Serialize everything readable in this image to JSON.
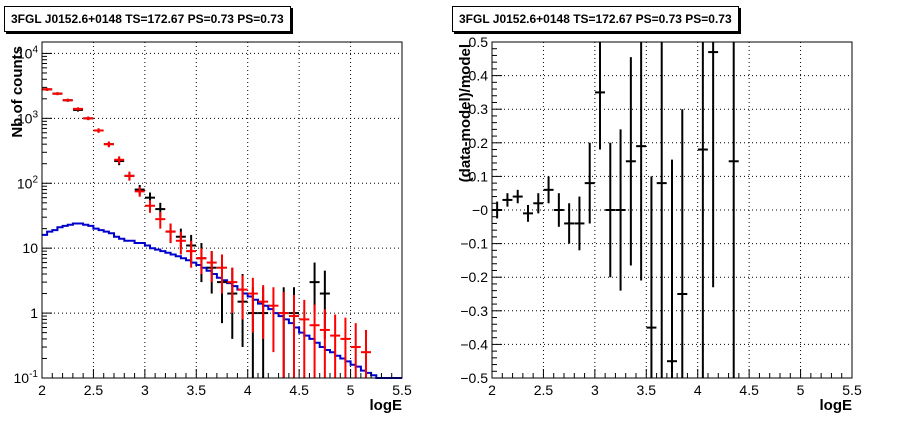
{
  "chart_data": [
    {
      "type": "line",
      "title": "3FGL J0152.6+0148 TS=172.67 PS=0.73 PS=0.73",
      "xlabel": "logE",
      "ylabel": "Nb of counts",
      "xlim": [
        2,
        5.5
      ],
      "ylim": [
        0.1,
        15000
      ],
      "yscale": "log",
      "grid": true,
      "xticks": [
        "2",
        "2.5",
        "3",
        "3.5",
        "4",
        "4.5",
        "5",
        "5.5"
      ],
      "yticks": [
        {
          "value": 0.1,
          "label": "10",
          "exp": "-1"
        },
        {
          "value": 1,
          "label": "1",
          "exp": ""
        },
        {
          "value": 10,
          "label": "10",
          "exp": ""
        },
        {
          "value": 100,
          "label": "10",
          "exp": "2"
        },
        {
          "value": 1000,
          "label": "10",
          "exp": "3"
        },
        {
          "value": 10000,
          "label": "10",
          "exp": "4"
        }
      ],
      "series": [
        {
          "color": "#000000",
          "style": "points",
          "x": [
            2.05,
            2.15,
            2.25,
            2.35,
            2.45,
            2.55,
            2.65,
            2.75,
            2.85,
            2.95,
            3.05,
            3.15,
            3.25,
            3.35,
            3.45,
            3.55,
            3.65,
            3.75,
            3.85,
            3.95,
            4.05,
            4.15,
            4.35,
            4.45,
            4.65,
            4.75
          ],
          "y": [
            2800,
            2400,
            1900,
            1350,
            1000,
            650,
            400,
            220,
            130,
            80,
            60,
            40,
            18,
            15,
            11,
            7,
            5,
            3,
            2,
            1.5,
            1,
            1,
            1,
            1,
            3,
            2
          ],
          "yerr_low": [
            150,
            120,
            100,
            80,
            60,
            50,
            40,
            30,
            20,
            14,
            12,
            10,
            6,
            5,
            5,
            4,
            3,
            2.3,
            1.6,
            1.2,
            0.9,
            0.9,
            0.9,
            0.9,
            2,
            1.6
          ],
          "yerr_high": [
            150,
            120,
            100,
            80,
            60,
            50,
            40,
            30,
            20,
            14,
            12,
            10,
            6,
            5,
            5,
            5,
            4,
            3,
            3,
            2.5,
            1.5,
            1.5,
            1.5,
            1.5,
            3,
            2.5
          ]
        },
        {
          "color": "#ff0000",
          "style": "points",
          "x": [
            2.05,
            2.15,
            2.25,
            2.35,
            2.45,
            2.55,
            2.65,
            2.75,
            2.85,
            2.95,
            3.05,
            3.15,
            3.25,
            3.35,
            3.45,
            3.55,
            3.65,
            3.75,
            3.85,
            3.95,
            4.05,
            4.15,
            4.25,
            4.35,
            4.45,
            4.55,
            4.65,
            4.75,
            4.85,
            4.95,
            5.05,
            5.15
          ],
          "y": [
            2800,
            2400,
            1900,
            1400,
            1000,
            650,
            400,
            230,
            130,
            75,
            45,
            28,
            18,
            13,
            9,
            7,
            6,
            5,
            3,
            2.3,
            2,
            1.5,
            1.3,
            1,
            0.9,
            0.8,
            0.65,
            0.55,
            0.45,
            0.4,
            0.3,
            0.25
          ],
          "yerr_low": [
            150,
            120,
            100,
            80,
            60,
            50,
            40,
            30,
            20,
            13,
            10,
            8,
            6,
            5,
            4,
            3,
            3,
            3,
            2,
            1.5,
            1.5,
            1.1,
            1.05,
            0.9,
            0.8,
            0.7,
            0.55,
            0.47,
            0.38,
            0.33,
            0.23,
            0.18
          ],
          "yerr_high": [
            150,
            120,
            100,
            80,
            60,
            50,
            40,
            30,
            20,
            13,
            10,
            8,
            6,
            5,
            4,
            3,
            3,
            3,
            2,
            1.5,
            1.5,
            1.2,
            1.2,
            1.1,
            1,
            0.8,
            0.7,
            0.6,
            0.5,
            0.45,
            0.4,
            0.3
          ]
        },
        {
          "color": "#0000cc",
          "style": "step",
          "x": [
            2.0,
            2.05,
            2.1,
            2.15,
            2.2,
            2.25,
            2.3,
            2.35,
            2.4,
            2.45,
            2.5,
            2.55,
            2.6,
            2.65,
            2.7,
            2.75,
            2.8,
            2.85,
            2.9,
            2.95,
            3.0,
            3.05,
            3.1,
            3.15,
            3.2,
            3.25,
            3.3,
            3.35,
            3.4,
            3.45,
            3.5,
            3.55,
            3.6,
            3.65,
            3.7,
            3.75,
            3.8,
            3.85,
            3.9,
            3.95,
            4.0,
            4.05,
            4.1,
            4.15,
            4.2,
            4.25,
            4.3,
            4.35,
            4.4,
            4.45,
            4.5,
            4.55,
            4.6,
            4.65,
            4.7,
            4.75,
            4.8,
            4.85,
            4.9,
            4.95,
            5.0,
            5.05,
            5.1,
            5.15,
            5.2,
            5.25,
            5.3,
            5.35,
            5.4,
            5.45
          ],
          "y": [
            16,
            18,
            19,
            21,
            22,
            23,
            24,
            24,
            23,
            22,
            20,
            19,
            18,
            17,
            15,
            14,
            13,
            13,
            12,
            12,
            11,
            10,
            9.5,
            9,
            8.5,
            8,
            7.5,
            7,
            6.5,
            6,
            5.5,
            5,
            4.5,
            4,
            3.5,
            3.2,
            2.9,
            2.6,
            2.3,
            2.0,
            1.8,
            1.6,
            1.4,
            1.3,
            1.15,
            1.0,
            0.9,
            0.8,
            0.7,
            0.6,
            0.5,
            0.45,
            0.4,
            0.35,
            0.3,
            0.27,
            0.25,
            0.22,
            0.2,
            0.18,
            0.16,
            0.15,
            0.13,
            0.12,
            0.11,
            0.1,
            0.1,
            0.1,
            0.1,
            0.1
          ]
        }
      ]
    },
    {
      "type": "scatter",
      "title": "3FGL J0152.6+0148 TS=172.67 PS=0.73 PS=0.73",
      "xlabel": "logE",
      "ylabel": "(data-model)/model",
      "xlim": [
        2,
        5.5
      ],
      "ylim": [
        -0.5,
        0.5
      ],
      "grid": true,
      "xticks": [
        "2",
        "2.5",
        "3",
        "3.5",
        "4",
        "4.5",
        "5",
        "5.5"
      ],
      "yticks": [
        "−0.5",
        "−0.4",
        "−0.3",
        "−0.2",
        "−0.1",
        "−0",
        "0.1",
        "0.2",
        "0.3",
        "0.4",
        "0.5"
      ],
      "series": [
        {
          "color": "#000000",
          "x": [
            2.05,
            2.15,
            2.25,
            2.35,
            2.45,
            2.55,
            2.65,
            2.75,
            2.85,
            2.95,
            3.05,
            3.15,
            3.25,
            3.35,
            3.45,
            3.55,
            3.65,
            3.75,
            3.85,
            4.05,
            4.15,
            4.35
          ],
          "y": [
            0.0,
            0.03,
            0.04,
            -0.01,
            0.02,
            0.06,
            0.0,
            -0.04,
            -0.04,
            0.08,
            0.35,
            0.0,
            0.0,
            0.145,
            0.19,
            -0.35,
            0.08,
            -0.45,
            -0.25,
            0.18,
            0.47,
            0.145
          ],
          "yerr": [
            0.025,
            0.02,
            0.02,
            0.025,
            0.03,
            0.04,
            0.05,
            0.06,
            0.08,
            0.12,
            0.17,
            0.2,
            0.24,
            0.31,
            0.4,
            0.45,
            0.6,
            0.6,
            0.55,
            0.7,
            0.7,
            0.7
          ]
        }
      ]
    }
  ]
}
